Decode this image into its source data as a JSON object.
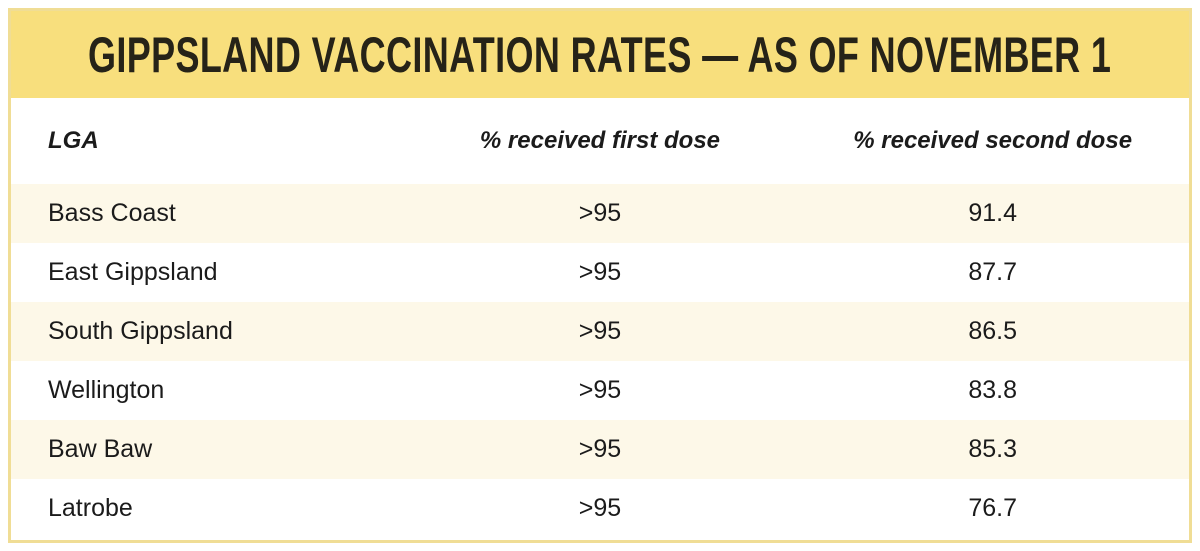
{
  "chart_data": {
    "type": "table",
    "title": "GIPPSLAND VACCINATION RATES — AS OF NOVEMBER 1",
    "columns": [
      "LGA",
      "% received first dose",
      "% received second dose"
    ],
    "rows": [
      [
        "Bass Coast",
        ">95",
        "91.4"
      ],
      [
        "East Gippsland",
        ">95",
        "87.7"
      ],
      [
        "South Gippsland",
        ">95",
        "86.5"
      ],
      [
        "Wellington",
        ">95",
        "83.8"
      ],
      [
        "Baw Baw",
        ">95",
        "85.3"
      ],
      [
        "Latrobe",
        ">95",
        "76.7"
      ]
    ],
    "second_dose_numeric": [
      91.4,
      87.7,
      86.5,
      83.8,
      85.3,
      76.7
    ],
    "layout_hints": {
      "alternating_row_shading": true,
      "first_column_align": "left",
      "value_columns_align": "center"
    }
  },
  "colors": {
    "banner_yellow": "#F8DF7D",
    "card_border_yellow": "#F0DD95",
    "row_cream": "#FDF8E8",
    "row_white": "#FFFFFF",
    "title_text": "#262318",
    "body_text": "#1B1B1B"
  }
}
